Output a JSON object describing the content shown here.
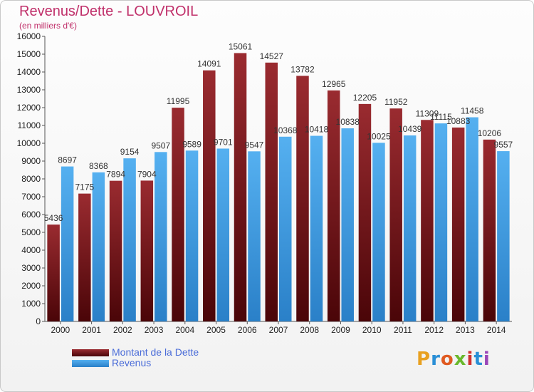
{
  "header": {
    "title": "Revenus/Dette - LOUVROIL",
    "subtitle": "(en milliers d'€)"
  },
  "logo": {
    "text": "Proxiti"
  },
  "chart_data": {
    "type": "bar",
    "title": "Revenus/Dette - LOUVROIL",
    "subtitle": "(en milliers d'€)",
    "categories": [
      "2000",
      "2001",
      "2002",
      "2003",
      "2004",
      "2005",
      "2006",
      "2007",
      "2008",
      "2009",
      "2010",
      "2011",
      "2012",
      "2013",
      "2014"
    ],
    "series": [
      {
        "name": "Montant de la Dette",
        "color": "#8b1f24",
        "values": [
          5436,
          7175,
          7894,
          7904,
          11995,
          14091,
          15061,
          14527,
          13782,
          12965,
          12205,
          11952,
          11309,
          10883,
          10206
        ],
        "labels": [
          "5436",
          "7175",
          "7894",
          "7904",
          "11995",
          "14091",
          "15061",
          "14527",
          "13782",
          "12965",
          "12205",
          "11952",
          "11309",
          "10883",
          "10206"
        ]
      },
      {
        "name": "Revenus",
        "color": "#3d9be0",
        "values": [
          8697,
          8368,
          9154,
          9507,
          9589,
          9701,
          9547,
          10368,
          10418,
          10838,
          10025,
          10439,
          11115,
          11458,
          9557
        ],
        "labels": [
          "8697",
          "8368",
          "9154",
          "9507",
          "9589",
          "9701",
          "9547",
          "10368",
          "10418",
          "10838",
          "10025",
          "10439",
          "11115",
          "11458",
          "9557"
        ]
      }
    ],
    "yticks": [
      0,
      1000,
      2000,
      3000,
      4000,
      5000,
      6000,
      7000,
      8000,
      9000,
      10000,
      11000,
      12000,
      13000,
      14000,
      15000,
      16000
    ],
    "ylim": [
      0,
      16000
    ],
    "grid": false,
    "legend": "bottom-left"
  }
}
